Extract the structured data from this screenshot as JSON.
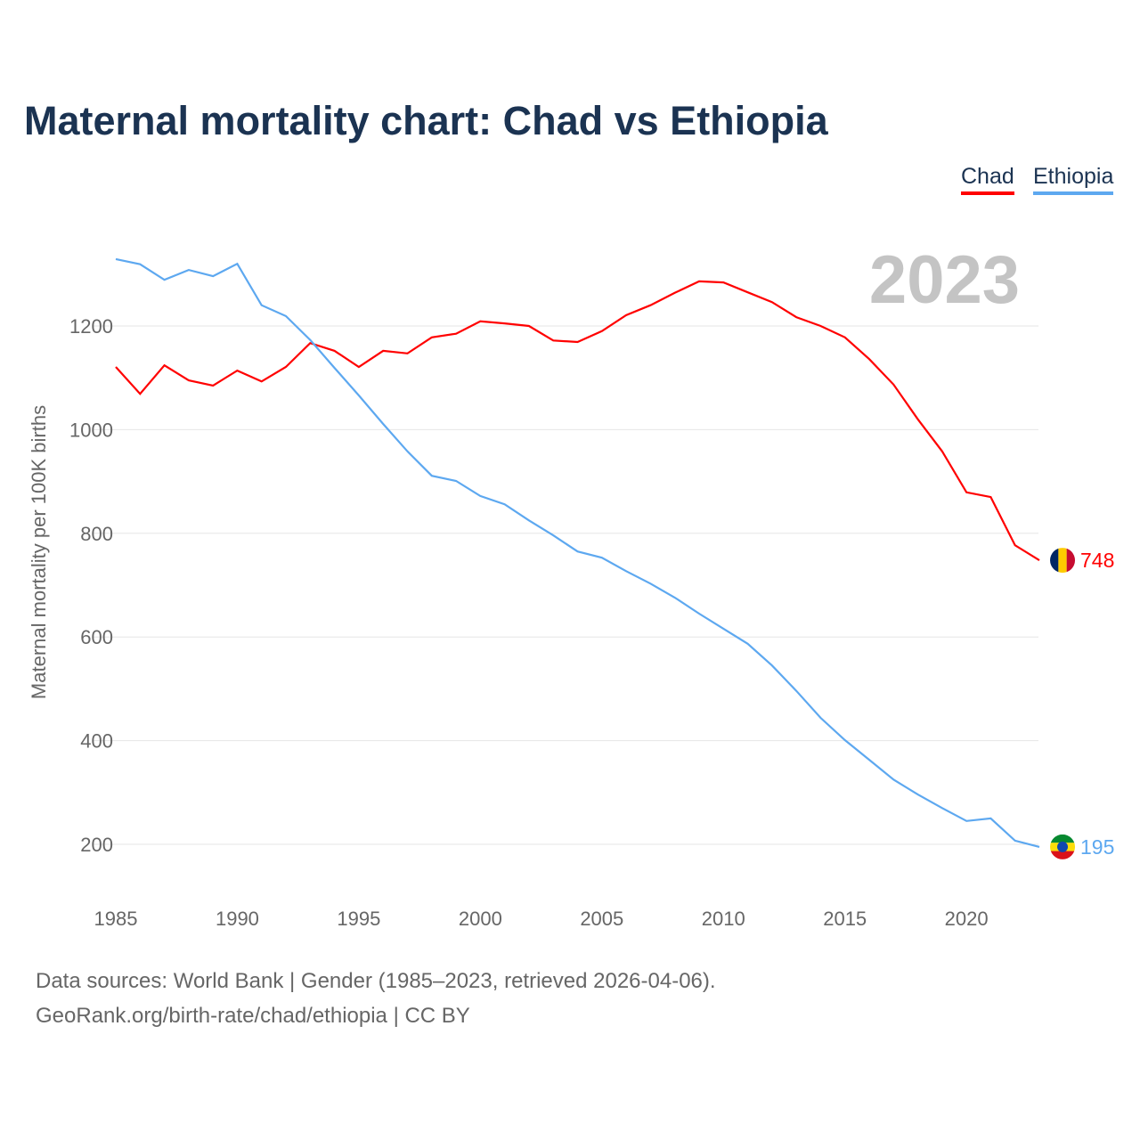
{
  "title": "Maternal mortality chart: Chad vs Ethiopia",
  "legend": [
    "Chad",
    "Ethiopia"
  ],
  "footer": {
    "line1": "Data sources: World Bank | Gender (1985–2023, retrieved 2026-04-06).",
    "line2": "GeoRank.org/birth-rate/chad/ethiopia | CC BY"
  },
  "chart_data": {
    "type": "line",
    "title": "Maternal mortality chart: Chad vs Ethiopia",
    "ylabel": "Maternal mortality per 100K births",
    "xlabel": "",
    "year_label": "2023",
    "xlim": [
      1985,
      2023
    ],
    "ylim": [
      100,
      1400
    ],
    "yticks": [
      200,
      400,
      600,
      800,
      1000,
      1200
    ],
    "xticks": [
      1985,
      1990,
      1995,
      2000,
      2005,
      2010,
      2015,
      2020
    ],
    "legend_position": "top-right",
    "x": [
      1985,
      1986,
      1987,
      1988,
      1989,
      1990,
      1991,
      1992,
      1993,
      1994,
      1995,
      1996,
      1997,
      1998,
      1999,
      2000,
      2001,
      2002,
      2003,
      2004,
      2005,
      2006,
      2007,
      2008,
      2009,
      2010,
      2011,
      2012,
      2013,
      2014,
      2015,
      2016,
      2017,
      2018,
      2019,
      2020,
      2021,
      2022,
      2023
    ],
    "series": [
      {
        "name": "Chad",
        "color": "#ff0000",
        "end_label": "748",
        "values": [
          1121,
          1069,
          1124,
          1095,
          1085,
          1114,
          1093,
          1121,
          1167,
          1152,
          1121,
          1152,
          1147,
          1178,
          1185,
          1209,
          1205,
          1200,
          1172,
          1169,
          1190,
          1221,
          1240,
          1264,
          1286,
          1284,
          1265,
          1246,
          1217,
          1200,
          1178,
          1136,
          1087,
          1020,
          958,
          879,
          870,
          777,
          748
        ]
      },
      {
        "name": "Ethiopia",
        "color": "#5da8f0",
        "end_label": "195",
        "values": [
          1329,
          1319,
          1289,
          1308,
          1296,
          1320,
          1240,
          1219,
          1173,
          1119,
          1066,
          1011,
          958,
          911,
          901,
          872,
          856,
          825,
          796,
          765,
          753,
          727,
          703,
          676,
          645,
          616,
          587,
          545,
          496,
          444,
          401,
          363,
          325,
          296,
          270,
          245,
          250,
          207,
          195
        ]
      }
    ]
  }
}
